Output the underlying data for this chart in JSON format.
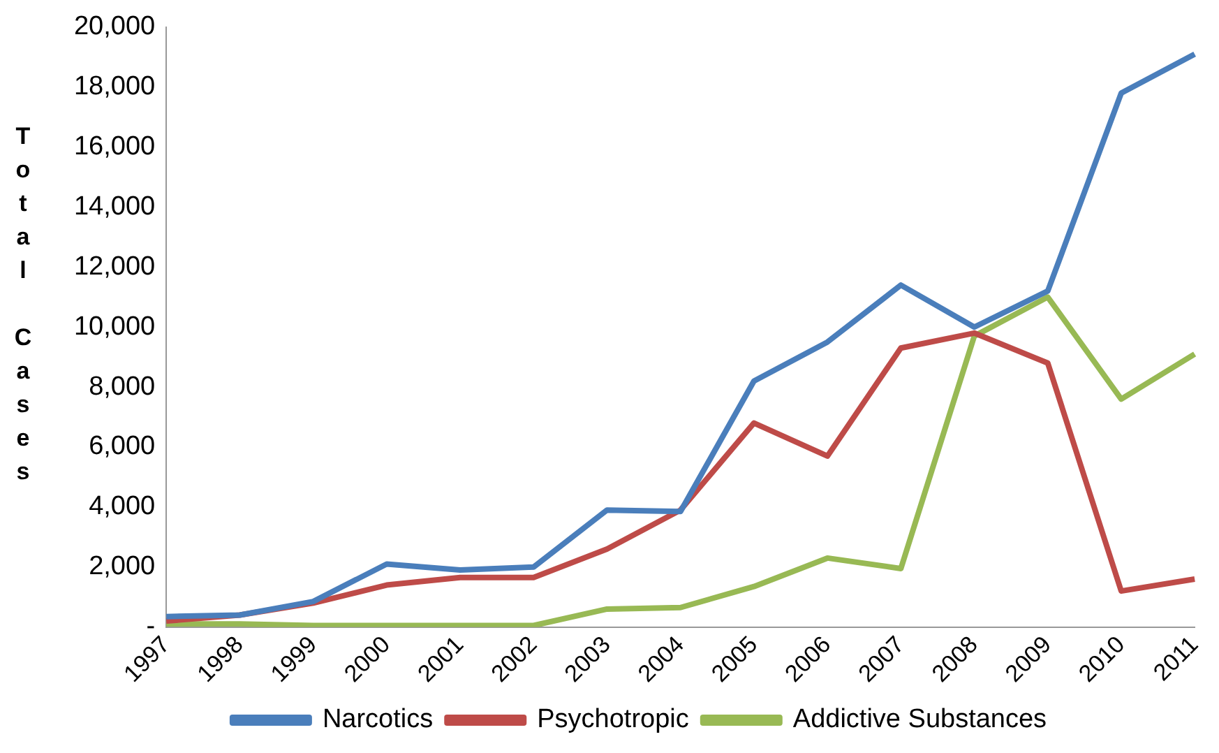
{
  "chart_data": {
    "type": "line",
    "ylabel": "Total Cases",
    "categories": [
      "1997",
      "1998",
      "1999",
      "2000",
      "2001",
      "2002",
      "2003",
      "2004",
      "2005",
      "2006",
      "2007",
      "2008",
      "2009",
      "2010",
      "2011"
    ],
    "series": [
      {
        "name": "Narcotics",
        "color": "#4a7ebb",
        "values": [
          350,
          400,
          850,
          2100,
          1900,
          2000,
          3900,
          3850,
          8200,
          9500,
          11400,
          10000,
          11200,
          17800,
          19100
        ]
      },
      {
        "name": "Psychotropic",
        "color": "#be4b48",
        "values": [
          200,
          400,
          800,
          1400,
          1650,
          1650,
          2600,
          3900,
          6800,
          5700,
          9300,
          9800,
          8800,
          1200,
          1600
        ]
      },
      {
        "name": "Addictive Substances",
        "color": "#98b954",
        "values": [
          100,
          100,
          50,
          50,
          50,
          50,
          600,
          650,
          1350,
          2300,
          1950,
          9700,
          11000,
          7600,
          9100
        ]
      }
    ],
    "ylim": [
      0,
      20000
    ],
    "yticks": [
      {
        "value": 0,
        "label": "-"
      },
      {
        "value": 2000,
        "label": "2,000"
      },
      {
        "value": 4000,
        "label": "4,000"
      },
      {
        "value": 6000,
        "label": "6,000"
      },
      {
        "value": 8000,
        "label": "8,000"
      },
      {
        "value": 10000,
        "label": "10,000"
      },
      {
        "value": 12000,
        "label": "12,000"
      },
      {
        "value": 14000,
        "label": "14,000"
      },
      {
        "value": 16000,
        "label": "16,000"
      },
      {
        "value": 18000,
        "label": "18,000"
      },
      {
        "value": 20000,
        "label": "20,000"
      }
    ],
    "grid": false,
    "legend": "bottom",
    "marker": "none",
    "line_style": "solid"
  }
}
